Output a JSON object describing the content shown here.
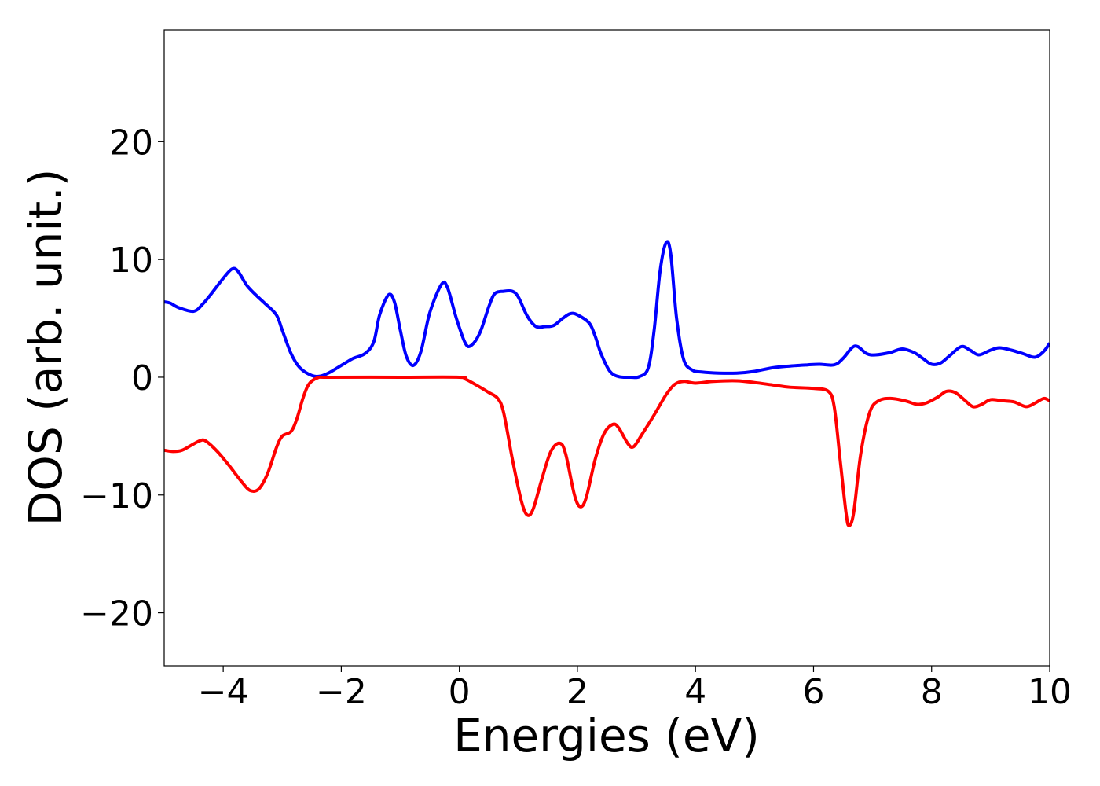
{
  "chart_data": {
    "type": "line",
    "title": "",
    "xlabel": "Energies (eV)",
    "ylabel": "DOS (arb. unit.)",
    "xlim": [
      -5,
      10
    ],
    "ylim": [
      -24.5,
      29.5
    ],
    "grid": false,
    "legend": "none",
    "x_ticks": [
      -4,
      -2,
      0,
      2,
      4,
      6,
      8,
      10
    ],
    "x_tick_labels": [
      "−4",
      "−2",
      "0",
      "2",
      "4",
      "6",
      "8",
      "10"
    ],
    "y_ticks": [
      -20,
      -10,
      0,
      10,
      20
    ],
    "y_tick_labels": [
      "−20",
      "−10",
      "0",
      "10",
      "20"
    ],
    "series": [
      {
        "color": "#0000ff",
        "points": [
          [
            -5.0,
            6.4
          ],
          [
            -4.9,
            6.3
          ],
          [
            -4.75,
            5.9
          ],
          [
            -4.5,
            5.6
          ],
          [
            -4.35,
            6.2
          ],
          [
            -4.2,
            7.1
          ],
          [
            -4.0,
            8.4
          ],
          [
            -3.85,
            9.2
          ],
          [
            -3.75,
            9.0
          ],
          [
            -3.6,
            7.8
          ],
          [
            -3.45,
            7.0
          ],
          [
            -3.3,
            6.3
          ],
          [
            -3.1,
            5.3
          ],
          [
            -3.0,
            4.0
          ],
          [
            -2.85,
            2.0
          ],
          [
            -2.7,
            0.8
          ],
          [
            -2.5,
            0.15
          ],
          [
            -2.35,
            0.1
          ],
          [
            -2.2,
            0.4
          ],
          [
            -2.0,
            1.0
          ],
          [
            -1.8,
            1.6
          ],
          [
            -1.6,
            2.0
          ],
          [
            -1.45,
            3.0
          ],
          [
            -1.35,
            5.3
          ],
          [
            -1.2,
            7.0
          ],
          [
            -1.1,
            6.4
          ],
          [
            -1.0,
            4.0
          ],
          [
            -0.9,
            1.8
          ],
          [
            -0.78,
            1.0
          ],
          [
            -0.65,
            2.2
          ],
          [
            -0.5,
            5.5
          ],
          [
            -0.3,
            7.9
          ],
          [
            -0.2,
            7.6
          ],
          [
            -0.05,
            5.0
          ],
          [
            0.1,
            2.9
          ],
          [
            0.2,
            2.7
          ],
          [
            0.35,
            3.8
          ],
          [
            0.5,
            6.0
          ],
          [
            0.6,
            7.1
          ],
          [
            0.75,
            7.3
          ],
          [
            0.9,
            7.3
          ],
          [
            1.0,
            6.8
          ],
          [
            1.15,
            5.2
          ],
          [
            1.3,
            4.3
          ],
          [
            1.45,
            4.3
          ],
          [
            1.6,
            4.4
          ],
          [
            1.75,
            5.0
          ],
          [
            1.88,
            5.4
          ],
          [
            2.0,
            5.3
          ],
          [
            2.2,
            4.6
          ],
          [
            2.3,
            3.5
          ],
          [
            2.4,
            2.0
          ],
          [
            2.55,
            0.5
          ],
          [
            2.7,
            0.05
          ],
          [
            2.9,
            0.0
          ],
          [
            3.05,
            0.05
          ],
          [
            3.2,
            0.8
          ],
          [
            3.3,
            4.0
          ],
          [
            3.4,
            9.0
          ],
          [
            3.5,
            11.4
          ],
          [
            3.58,
            10.5
          ],
          [
            3.68,
            5.0
          ],
          [
            3.8,
            1.5
          ],
          [
            3.95,
            0.6
          ],
          [
            4.1,
            0.45
          ],
          [
            4.4,
            0.35
          ],
          [
            4.7,
            0.35
          ],
          [
            5.0,
            0.5
          ],
          [
            5.3,
            0.8
          ],
          [
            5.6,
            0.95
          ],
          [
            5.9,
            1.05
          ],
          [
            6.1,
            1.1
          ],
          [
            6.35,
            1.05
          ],
          [
            6.5,
            1.6
          ],
          [
            6.65,
            2.5
          ],
          [
            6.75,
            2.6
          ],
          [
            6.9,
            2.0
          ],
          [
            7.05,
            1.9
          ],
          [
            7.3,
            2.1
          ],
          [
            7.5,
            2.4
          ],
          [
            7.7,
            2.1
          ],
          [
            7.85,
            1.6
          ],
          [
            8.0,
            1.1
          ],
          [
            8.15,
            1.2
          ],
          [
            8.3,
            1.8
          ],
          [
            8.5,
            2.6
          ],
          [
            8.65,
            2.3
          ],
          [
            8.8,
            1.9
          ],
          [
            9.0,
            2.3
          ],
          [
            9.15,
            2.5
          ],
          [
            9.35,
            2.3
          ],
          [
            9.55,
            2.0
          ],
          [
            9.75,
            1.7
          ],
          [
            9.9,
            2.2
          ],
          [
            10.0,
            2.9
          ]
        ]
      },
      {
        "color": "#ff0000",
        "points": [
          [
            -5.0,
            -6.2
          ],
          [
            -4.85,
            -6.3
          ],
          [
            -4.7,
            -6.2
          ],
          [
            -4.55,
            -5.8
          ],
          [
            -4.4,
            -5.4
          ],
          [
            -4.3,
            -5.4
          ],
          [
            -4.1,
            -6.3
          ],
          [
            -3.9,
            -7.5
          ],
          [
            -3.7,
            -8.8
          ],
          [
            -3.55,
            -9.6
          ],
          [
            -3.4,
            -9.5
          ],
          [
            -3.25,
            -8.2
          ],
          [
            -3.1,
            -6.0
          ],
          [
            -3.0,
            -5.0
          ],
          [
            -2.85,
            -4.6
          ],
          [
            -2.75,
            -3.5
          ],
          [
            -2.65,
            -1.8
          ],
          [
            -2.55,
            -0.6
          ],
          [
            -2.4,
            -0.05
          ],
          [
            -2.2,
            0.0
          ],
          [
            -1.0,
            0.0
          ],
          [
            0.0,
            0.0
          ],
          [
            0.1,
            -0.15
          ],
          [
            0.3,
            -0.7
          ],
          [
            0.5,
            -1.3
          ],
          [
            0.65,
            -1.8
          ],
          [
            0.75,
            -3.0
          ],
          [
            0.9,
            -7.0
          ],
          [
            1.05,
            -10.5
          ],
          [
            1.15,
            -11.7
          ],
          [
            1.25,
            -11.2
          ],
          [
            1.4,
            -8.6
          ],
          [
            1.55,
            -6.3
          ],
          [
            1.7,
            -5.6
          ],
          [
            1.8,
            -6.5
          ],
          [
            1.95,
            -10.0
          ],
          [
            2.05,
            -11.0
          ],
          [
            2.15,
            -10.2
          ],
          [
            2.3,
            -7.0
          ],
          [
            2.45,
            -4.8
          ],
          [
            2.6,
            -4.0
          ],
          [
            2.7,
            -4.3
          ],
          [
            2.85,
            -5.6
          ],
          [
            2.95,
            -5.9
          ],
          [
            3.1,
            -4.8
          ],
          [
            3.3,
            -3.2
          ],
          [
            3.5,
            -1.5
          ],
          [
            3.65,
            -0.6
          ],
          [
            3.8,
            -0.35
          ],
          [
            4.0,
            -0.5
          ],
          [
            4.3,
            -0.35
          ],
          [
            4.7,
            -0.3
          ],
          [
            5.0,
            -0.45
          ],
          [
            5.3,
            -0.65
          ],
          [
            5.6,
            -0.85
          ],
          [
            6.0,
            -0.95
          ],
          [
            6.25,
            -1.2
          ],
          [
            6.35,
            -2.5
          ],
          [
            6.45,
            -7.0
          ],
          [
            6.55,
            -11.5
          ],
          [
            6.6,
            -12.6
          ],
          [
            6.68,
            -11.5
          ],
          [
            6.8,
            -6.5
          ],
          [
            6.95,
            -3.0
          ],
          [
            7.1,
            -2.0
          ],
          [
            7.3,
            -1.8
          ],
          [
            7.55,
            -2.0
          ],
          [
            7.75,
            -2.3
          ],
          [
            7.9,
            -2.2
          ],
          [
            8.1,
            -1.7
          ],
          [
            8.25,
            -1.2
          ],
          [
            8.4,
            -1.3
          ],
          [
            8.55,
            -1.9
          ],
          [
            8.7,
            -2.5
          ],
          [
            8.85,
            -2.3
          ],
          [
            9.0,
            -1.9
          ],
          [
            9.2,
            -2.0
          ],
          [
            9.4,
            -2.1
          ],
          [
            9.6,
            -2.5
          ],
          [
            9.75,
            -2.2
          ],
          [
            9.9,
            -1.8
          ],
          [
            10.0,
            -2.0
          ]
        ]
      }
    ]
  }
}
